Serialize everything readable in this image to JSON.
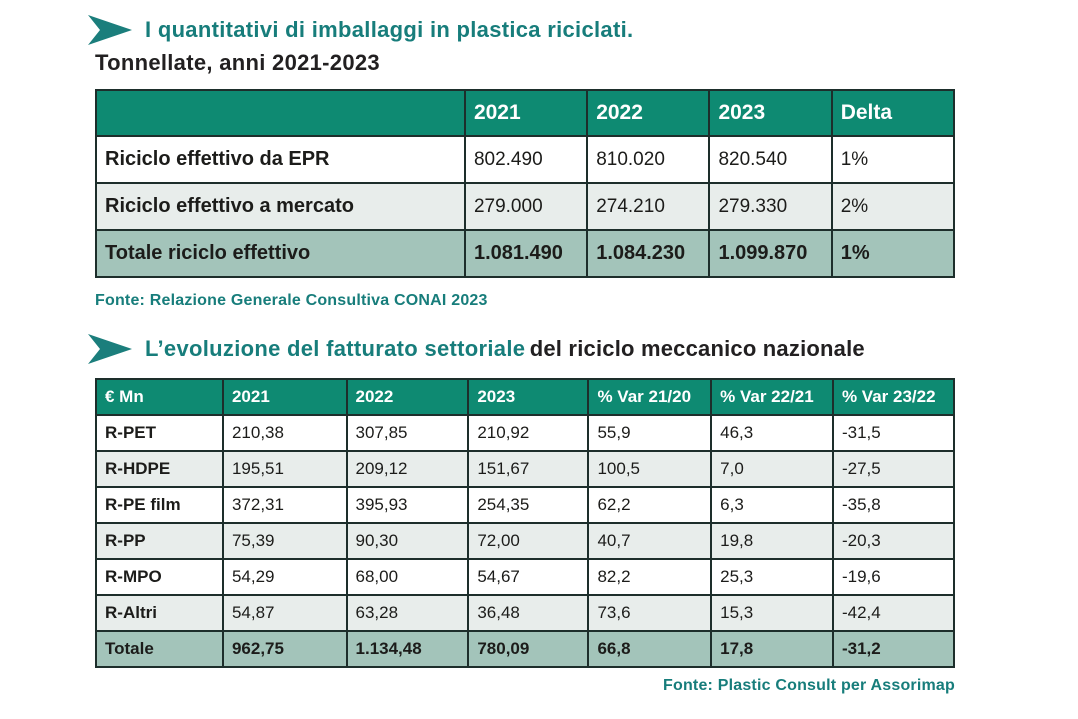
{
  "colors": {
    "accent_teal": "#177d7b",
    "table_header_green": "#0e8a72",
    "total_row_bg": "#a3c4ba",
    "alt_row_bg": "#e8edeb",
    "border_dark": "#1d2e2b",
    "text_dark": "#222021"
  },
  "section1": {
    "title_accent": "I quantitativi di imballaggi in plastica riciclati.",
    "subtitle": "Tonnellate, anni 2021-2023",
    "table": {
      "headers": [
        "",
        "2021",
        "2022",
        "2023",
        "Delta"
      ],
      "rows": [
        {
          "label": "Riciclo effettivo da EPR",
          "values": [
            "802.490",
            "810.020",
            "820.540",
            "1%"
          ]
        },
        {
          "label": "Riciclo effettivo a mercato",
          "values": [
            "279.000",
            "274.210",
            "279.330",
            "2%"
          ]
        },
        {
          "label": "Totale riciclo effettivo",
          "values": [
            "1.081.490",
            "1.084.230",
            "1.099.870",
            "1%"
          ],
          "total": true
        }
      ]
    },
    "source": "Fonte: Relazione Generale Consultiva CONAI 2023"
  },
  "section2": {
    "title_accent": "L’evoluzione del fatturato settoriale",
    "title_rest": "del riciclo meccanico nazionale",
    "table": {
      "headers": [
        "€ Mn",
        "2021",
        "2022",
        "2023",
        "% Var 21/20",
        "% Var 22/21",
        "% Var 23/22"
      ],
      "rows": [
        {
          "label": "R-PET",
          "values": [
            "210,38",
            "307,85",
            "210,92",
            "55,9",
            "46,3",
            "-31,5"
          ]
        },
        {
          "label": "R-HDPE",
          "values": [
            "195,51",
            "209,12",
            "151,67",
            "100,5",
            "7,0",
            "-27,5"
          ]
        },
        {
          "label": "R-PE film",
          "values": [
            "372,31",
            "395,93",
            "254,35",
            "62,2",
            "6,3",
            "-35,8"
          ]
        },
        {
          "label": "R-PP",
          "values": [
            "75,39",
            "90,30",
            "72,00",
            "40,7",
            "19,8",
            "-20,3"
          ]
        },
        {
          "label": "R-MPO",
          "values": [
            "54,29",
            "68,00",
            "54,67",
            "82,2",
            "25,3",
            "-19,6"
          ]
        },
        {
          "label": "R-Altri",
          "values": [
            "54,87",
            "63,28",
            "36,48",
            "73,6",
            "15,3",
            "-42,4"
          ]
        },
        {
          "label": "Totale",
          "values": [
            "962,75",
            "1.134,48",
            "780,09",
            "66,8",
            "17,8",
            "-31,2"
          ],
          "total": true
        }
      ]
    },
    "source": "Fonte: Plastic Consult per Assorimap"
  }
}
